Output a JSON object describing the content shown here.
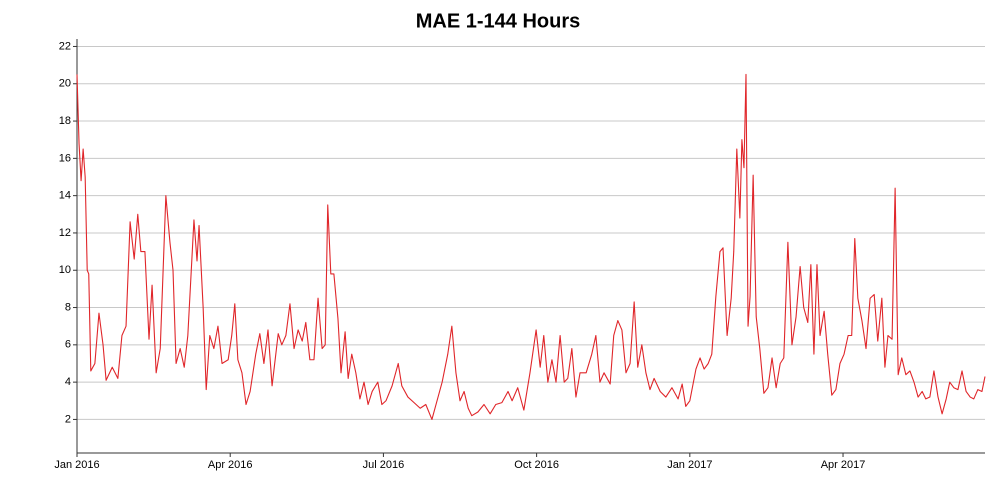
{
  "chart_data": {
    "type": "line",
    "title": "MAE 1-144 Hours",
    "x": [
      0,
      0.04,
      0.08,
      0.12,
      0.16,
      0.2,
      0.23,
      0.27,
      0.35,
      0.43,
      0.51,
      0.57,
      0.69,
      0.8,
      0.88,
      0.96,
      1.04,
      1.12,
      1.19,
      1.25,
      1.33,
      1.41,
      1.47,
      1.55,
      1.63,
      1.74,
      1.82,
      1.88,
      1.94,
      2.02,
      2.1,
      2.17,
      2.29,
      2.35,
      2.39,
      2.47,
      2.53,
      2.6,
      2.68,
      2.76,
      2.84,
      2.96,
      3.03,
      3.09,
      3.15,
      3.23,
      3.31,
      3.39,
      3.5,
      3.58,
      3.66,
      3.74,
      3.82,
      3.94,
      4.01,
      4.09,
      4.17,
      4.25,
      4.33,
      4.41,
      4.48,
      4.56,
      4.64,
      4.72,
      4.8,
      4.86,
      4.91,
      4.97,
      5.03,
      5.11,
      5.17,
      5.25,
      5.31,
      5.38,
      5.46,
      5.54,
      5.62,
      5.7,
      5.78,
      5.89,
      5.97,
      6.05,
      6.17,
      6.29,
      6.36,
      6.48,
      6.6,
      6.72,
      6.83,
      6.95,
      7.03,
      7.15,
      7.26,
      7.34,
      7.42,
      7.5,
      7.58,
      7.66,
      7.73,
      7.85,
      7.97,
      8.09,
      8.2,
      8.32,
      8.44,
      8.52,
      8.63,
      8.75,
      8.87,
      8.99,
      9.07,
      9.14,
      9.22,
      9.3,
      9.38,
      9.46,
      9.54,
      9.61,
      9.69,
      9.77,
      9.85,
      9.97,
      10.08,
      10.16,
      10.24,
      10.32,
      10.44,
      10.51,
      10.59,
      10.67,
      10.75,
      10.83,
      10.91,
      10.98,
      11.06,
      11.14,
      11.22,
      11.3,
      11.42,
      11.53,
      11.65,
      11.77,
      11.85,
      11.92,
      12.0,
      12.12,
      12.2,
      12.28,
      12.36,
      12.43,
      12.51,
      12.59,
      12.65,
      12.73,
      12.81,
      12.86,
      12.92,
      12.98,
      13.02,
      13.06,
      13.1,
      13.14,
      13.18,
      13.24,
      13.3,
      13.37,
      13.45,
      13.53,
      13.61,
      13.69,
      13.77,
      13.84,
      13.92,
      14.0,
      14.08,
      14.16,
      14.23,
      14.31,
      14.37,
      14.43,
      14.49,
      14.55,
      14.63,
      14.7,
      14.78,
      14.86,
      14.94,
      15.02,
      15.1,
      15.17,
      15.23,
      15.29,
      15.37,
      15.45,
      15.53,
      15.61,
      15.68,
      15.76,
      15.82,
      15.88,
      15.96,
      16.02,
      16.08,
      16.15,
      16.23,
      16.31,
      16.39,
      16.47,
      16.55,
      16.62,
      16.7,
      16.78,
      16.86,
      16.94,
      17.02,
      17.09,
      17.17,
      17.25,
      17.33,
      17.41,
      17.49,
      17.56,
      17.64,
      17.72,
      17.78
    ],
    "series": [
      {
        "color": "#e0262a",
        "values": [
          20.5,
          16.8,
          14.8,
          16.5,
          15,
          10,
          9.8,
          4.6,
          5,
          7.7,
          6,
          4.1,
          4.8,
          4.2,
          6.5,
          7,
          12.6,
          10.6,
          13,
          11,
          11,
          6.3,
          9.2,
          4.5,
          5.8,
          14,
          11.5,
          10,
          5,
          5.8,
          4.8,
          6.5,
          12.7,
          10.5,
          12.4,
          8,
          3.6,
          6.5,
          5.8,
          7,
          5,
          5.2,
          6.5,
          8.2,
          5.2,
          4.5,
          2.8,
          3.5,
          5.5,
          6.6,
          5,
          6.8,
          3.8,
          6.6,
          6,
          6.5,
          8.2,
          5.8,
          6.8,
          6.2,
          7.2,
          5.2,
          5.2,
          8.5,
          5.8,
          6,
          13.5,
          9.8,
          9.8,
          7.4,
          4.5,
          6.7,
          4.2,
          5.5,
          4.5,
          3.1,
          4,
          2.8,
          3.5,
          4,
          2.8,
          3,
          3.8,
          5,
          3.8,
          3.2,
          2.9,
          2.6,
          2.8,
          2,
          2.8,
          4,
          5.5,
          7,
          4.5,
          3,
          3.5,
          2.6,
          2.2,
          2.4,
          2.8,
          2.3,
          2.8,
          2.9,
          3.5,
          3,
          3.7,
          2.5,
          4.5,
          6.8,
          4.8,
          6.5,
          4,
          5.2,
          4,
          6.5,
          4,
          4.2,
          5.8,
          3.2,
          4.5,
          4.5,
          5.5,
          6.5,
          4,
          4.5,
          3.9,
          6.5,
          7.3,
          6.8,
          4.5,
          5,
          8.3,
          4.8,
          6,
          4.5,
          3.6,
          4.2,
          3.5,
          3.2,
          3.7,
          3.1,
          3.9,
          2.7,
          3,
          4.7,
          5.3,
          4.7,
          5,
          5.5,
          8.6,
          11,
          11.2,
          6.5,
          8.5,
          11,
          16.5,
          12.8,
          17,
          15.5,
          20.5,
          7,
          8.6,
          15.1,
          7.5,
          5.8,
          3.4,
          3.7,
          5.3,
          3.7,
          5,
          5.3,
          11.5,
          6,
          7.5,
          10.2,
          8,
          7.2,
          10.3,
          5.5,
          10.3,
          6.5,
          7.8,
          5.5,
          3.3,
          3.6,
          5,
          5.5,
          6.5,
          6.5,
          11.7,
          8.5,
          7.3,
          5.8,
          8.5,
          8.7,
          6.2,
          8.5,
          4.8,
          6.5,
          6.3,
          14.4,
          4.4,
          5.3,
          4.4,
          4.6,
          4,
          3.2,
          3.5,
          3.1,
          3.2,
          4.6,
          3.2,
          2.3,
          3.1,
          4,
          3.7,
          3.6,
          4.6,
          3.5,
          3.2,
          3.1,
          3.6,
          3.5,
          4.3
        ]
      }
    ],
    "xlim": [
      0,
      17.78
    ],
    "xticks": [
      {
        "value": 0,
        "label": "Jan 2016"
      },
      {
        "value": 3,
        "label": "Apr 2016"
      },
      {
        "value": 6,
        "label": "Jul 2016"
      },
      {
        "value": 9,
        "label": "Oct 2016"
      },
      {
        "value": 12,
        "label": "Jan 2017"
      },
      {
        "value": 15,
        "label": "Apr 2017"
      }
    ],
    "ylim": [
      0.2,
      22.4
    ],
    "yticks": [
      2,
      4,
      6,
      8,
      10,
      12,
      14,
      16,
      18,
      20,
      22
    ],
    "grid": true
  }
}
